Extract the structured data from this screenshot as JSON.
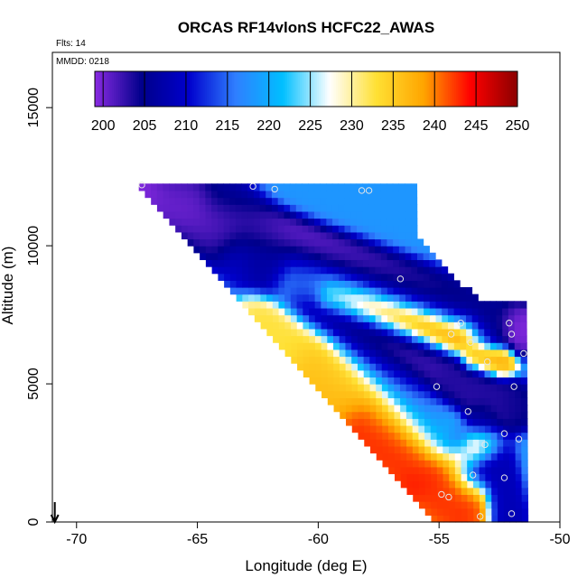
{
  "chart_data": {
    "type": "heatmap",
    "title": "ORCAS RF14vlonS HCFC22_AWAS",
    "subtitle_flights": "Flts: 14",
    "subtitle_date": "MMDD: 0218",
    "xlabel": "Longitude (deg E)",
    "ylabel": "Altitude (m)",
    "xlim": [
      -71,
      -50
    ],
    "ylim": [
      0,
      17000
    ],
    "x_ticks": [
      -70,
      -65,
      -60,
      -55,
      -50
    ],
    "y_ticks": [
      0,
      5000,
      10000,
      15000
    ],
    "colorbar": {
      "min": 199,
      "max": 250,
      "ticks": [
        200,
        205,
        210,
        215,
        220,
        225,
        230,
        235,
        240,
        245,
        250
      ],
      "colors": [
        "#8a2be2",
        "#00008b",
        "#0000cd",
        "#2f7fff",
        "#00bfff",
        "#ffffff",
        "#ffe033",
        "#ffa500",
        "#ff0000",
        "#8b0000"
      ]
    },
    "grid_cell": {
      "lon_step": 0.25,
      "alt_step": 250
    },
    "domain": {
      "lon_right": -51.5,
      "top_alt": 12200,
      "top_left_lon": -67.5,
      "bottom_left_lon": -55.2,
      "right_top_alt": 7600
    },
    "features": [
      {
        "lon0": -67.5,
        "alt0": 12100,
        "lon1": -51.8,
        "alt1": 7000,
        "value": 199,
        "width": 400
      },
      {
        "lon0": -66.0,
        "alt0": 11900,
        "lon1": -53.0,
        "alt1": 4300,
        "value": 202,
        "width": 550
      },
      {
        "lon0": -64.0,
        "alt0": 11500,
        "lon1": -53.5,
        "alt1": 2000,
        "value": 206,
        "width": 500
      },
      {
        "lon0": -63.0,
        "alt0": 9800,
        "lon1": -53.0,
        "alt1": 7200,
        "value": 212,
        "width": 500
      },
      {
        "lon0": -61.0,
        "alt0": 8800,
        "lon1": -54.0,
        "alt1": 6800,
        "value": 236,
        "width": 450
      },
      {
        "lon0": -59.5,
        "alt0": 8200,
        "lon1": -54.2,
        "alt1": 6800,
        "value": 246,
        "width": 300
      },
      {
        "lon0": -62.0,
        "alt0": 7000,
        "lon1": -55.0,
        "alt1": 3200,
        "value": 233,
        "width": 600
      },
      {
        "lon0": -60.0,
        "alt0": 5600,
        "lon1": -54.2,
        "alt1": 800,
        "value": 238,
        "width": 650
      },
      {
        "lon0": -58.0,
        "alt0": 3600,
        "lon1": -54.2,
        "alt1": 600,
        "value": 247,
        "width": 550
      },
      {
        "lon0": -56.0,
        "alt0": 1400,
        "lon1": -53.2,
        "alt1": 2800,
        "value": 244,
        "width": 350
      },
      {
        "lon0": -54.5,
        "alt0": 5200,
        "lon1": -51.8,
        "alt1": 4200,
        "value": 204,
        "width": 350
      },
      {
        "lon0": -53.5,
        "alt0": 6000,
        "lon1": -52.5,
        "alt1": 5800,
        "value": 238,
        "width": 300
      },
      {
        "lon0": -53.2,
        "alt0": 3800,
        "lon1": -52.2,
        "alt1": 200,
        "value": 208,
        "width": 350
      }
    ],
    "sample_points": [
      {
        "lon": -67.3,
        "alt": 12200
      },
      {
        "lon": -62.7,
        "alt": 12150
      },
      {
        "lon": -61.8,
        "alt": 12050
      },
      {
        "lon": -58.2,
        "alt": 12000
      },
      {
        "lon": -57.9,
        "alt": 12000
      },
      {
        "lon": -56.6,
        "alt": 8800
      },
      {
        "lon": -54.1,
        "alt": 7200
      },
      {
        "lon": -54.5,
        "alt": 6800
      },
      {
        "lon": -53.7,
        "alt": 6500
      },
      {
        "lon": -52.1,
        "alt": 7200
      },
      {
        "lon": -52.0,
        "alt": 6800
      },
      {
        "lon": -51.5,
        "alt": 6100
      },
      {
        "lon": -53.0,
        "alt": 5800
      },
      {
        "lon": -51.9,
        "alt": 4900
      },
      {
        "lon": -55.1,
        "alt": 4900
      },
      {
        "lon": -53.8,
        "alt": 4000
      },
      {
        "lon": -52.3,
        "alt": 3200
      },
      {
        "lon": -51.7,
        "alt": 3000
      },
      {
        "lon": -53.1,
        "alt": 2800
      },
      {
        "lon": -53.6,
        "alt": 1700
      },
      {
        "lon": -52.3,
        "alt": 1600
      },
      {
        "lon": -54.9,
        "alt": 1000
      },
      {
        "lon": -54.6,
        "alt": 900
      },
      {
        "lon": -52.0,
        "alt": 300
      },
      {
        "lon": -53.3,
        "alt": 200
      }
    ],
    "arrow": {
      "lon": -70.9,
      "direction": "down"
    },
    "legend_position": "colorbar inside top of plot"
  }
}
